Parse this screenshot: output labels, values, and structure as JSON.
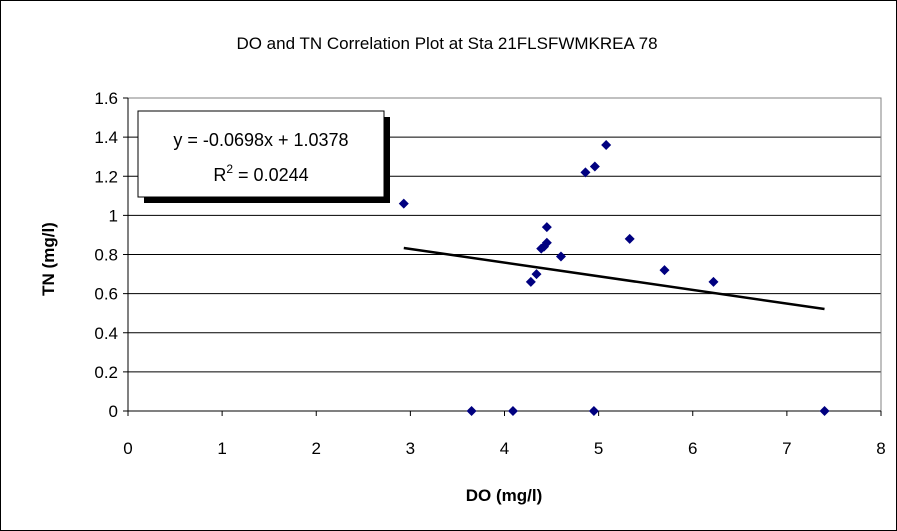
{
  "chart_data": {
    "type": "scatter",
    "title": "DO and TN Correlation Plot at Sta  21FLSFWMKREA 78",
    "xlabel": "DO (mg/l)",
    "ylabel": "TN (mg/l)",
    "xlim": [
      0,
      8
    ],
    "ylim": [
      0,
      1.6
    ],
    "xticks": [
      "0",
      "1",
      "2",
      "3",
      "4",
      "5",
      "6",
      "7",
      "8"
    ],
    "yticks": [
      "0",
      "0.2",
      "0.4",
      "0.6",
      "0.8",
      "1",
      "1.2",
      "1.4",
      "1.6"
    ],
    "grid": "horizontal",
    "marker_color": "#000080",
    "points": [
      {
        "x": 2.93,
        "y": 1.06
      },
      {
        "x": 3.65,
        "y": 0.0
      },
      {
        "x": 4.09,
        "y": 0.0
      },
      {
        "x": 4.28,
        "y": 0.66
      },
      {
        "x": 4.34,
        "y": 0.7
      },
      {
        "x": 4.39,
        "y": 0.83
      },
      {
        "x": 4.42,
        "y": 0.84
      },
      {
        "x": 4.45,
        "y": 0.86
      },
      {
        "x": 4.45,
        "y": 0.94
      },
      {
        "x": 4.6,
        "y": 0.79
      },
      {
        "x": 4.86,
        "y": 1.22
      },
      {
        "x": 4.96,
        "y": 1.25
      },
      {
        "x": 4.95,
        "y": 0.0
      },
      {
        "x": 5.08,
        "y": 1.36
      },
      {
        "x": 5.33,
        "y": 0.88
      },
      {
        "x": 5.7,
        "y": 0.72
      },
      {
        "x": 6.22,
        "y": 0.66
      },
      {
        "x": 7.4,
        "y": 0.0
      }
    ],
    "trendline": {
      "slope": -0.0698,
      "intercept": 1.0378,
      "x_range": [
        2.93,
        7.4
      ],
      "equation": "y = -0.0698x + 1.0378",
      "r2_prefix": "R",
      "r2_sup": "2",
      "r2_value": " = 0.0244"
    }
  }
}
